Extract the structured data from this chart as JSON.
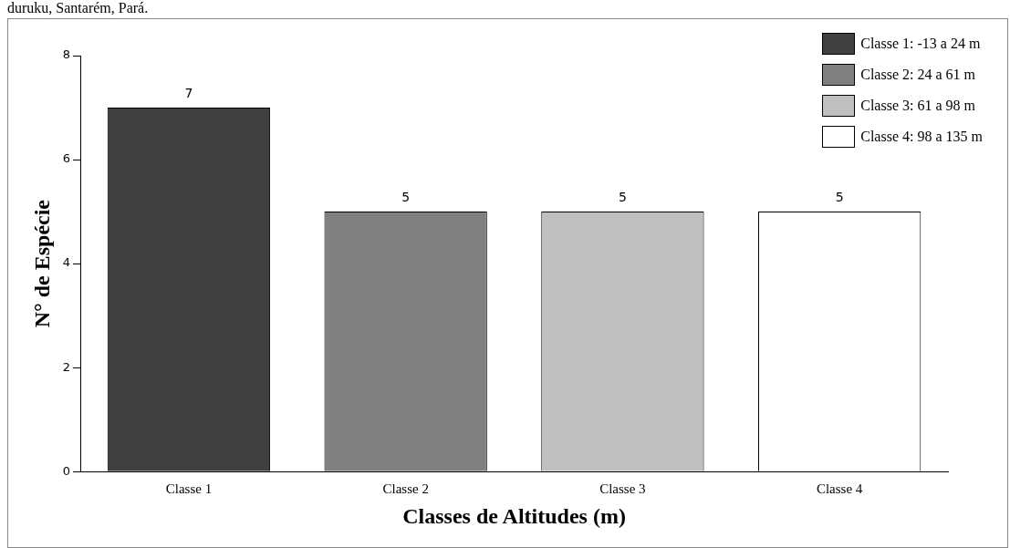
{
  "chart_data": {
    "type": "bar",
    "annotations": [
      "duruku, Santarém, Pará."
    ],
    "xlabel": "Classes de Altitudes (m)",
    "ylabel": "N° de Espécie",
    "categories": [
      "Classe 1",
      "Classe 2",
      "Classe 3",
      "Classe 4"
    ],
    "series": [
      {
        "name": "Classe 1: -13 a 24 m",
        "color": "#404040",
        "values": [
          7,
          null,
          null,
          null
        ]
      },
      {
        "name": "Classe 2: 24 a 61 m",
        "color": "#808080",
        "values": [
          null,
          5,
          null,
          null
        ]
      },
      {
        "name": "Classe 3: 61 a 98 m",
        "color": "#c0c0c0",
        "values": [
          null,
          null,
          5,
          null
        ]
      },
      {
        "name": "Classe 4: 98 a 135 m",
        "color": "#ffffff",
        "values": [
          null,
          null,
          null,
          5
        ]
      }
    ],
    "ylim": [
      0,
      8
    ],
    "yticks": [
      0,
      2,
      4,
      6,
      8
    ],
    "grid": false,
    "legend": "top right",
    "data_labels": true
  }
}
